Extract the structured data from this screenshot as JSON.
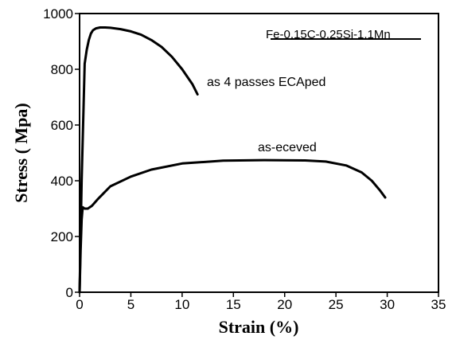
{
  "chart_data": {
    "type": "line",
    "title": "",
    "xlabel": "Strain (%)",
    "ylabel": "Stress ( Mpa)",
    "xlim": [
      0,
      35
    ],
    "ylim": [
      0,
      1000
    ],
    "xticks": [
      0,
      5,
      10,
      15,
      20,
      25,
      30,
      35
    ],
    "yticks": [
      0,
      200,
      400,
      600,
      800,
      1000
    ],
    "grid": false,
    "legend_text": "Fe-0.15C-0.25Si-1.1Mn",
    "series": [
      {
        "name": "as  4 passes ECAped",
        "color": "#000000",
        "x": [
          0.0,
          0.2,
          0.5,
          0.7,
          0.9,
          1.1,
          1.3,
          1.6,
          2.0,
          2.5,
          3.0,
          4.0,
          5.0,
          6.0,
          7.0,
          8.0,
          9.0,
          10.0,
          11.0,
          11.5
        ],
        "y": [
          0,
          400,
          820,
          870,
          905,
          928,
          940,
          947,
          950,
          950,
          949,
          944,
          936,
          924,
          905,
          880,
          845,
          800,
          747,
          710
        ]
      },
      {
        "name": "as-eceved",
        "color": "#000000",
        "x": [
          0.0,
          0.1,
          0.2,
          0.3,
          0.5,
          0.8,
          1.2,
          1.8,
          3.0,
          5.0,
          7.0,
          10.0,
          14.0,
          18.0,
          22.0,
          24.0,
          26.0,
          27.5,
          28.5,
          29.3,
          29.8
        ],
        "y": [
          0,
          150,
          260,
          305,
          300,
          300,
          310,
          335,
          380,
          415,
          440,
          462,
          472,
          474,
          473,
          469,
          455,
          430,
          400,
          365,
          340
        ]
      }
    ]
  }
}
